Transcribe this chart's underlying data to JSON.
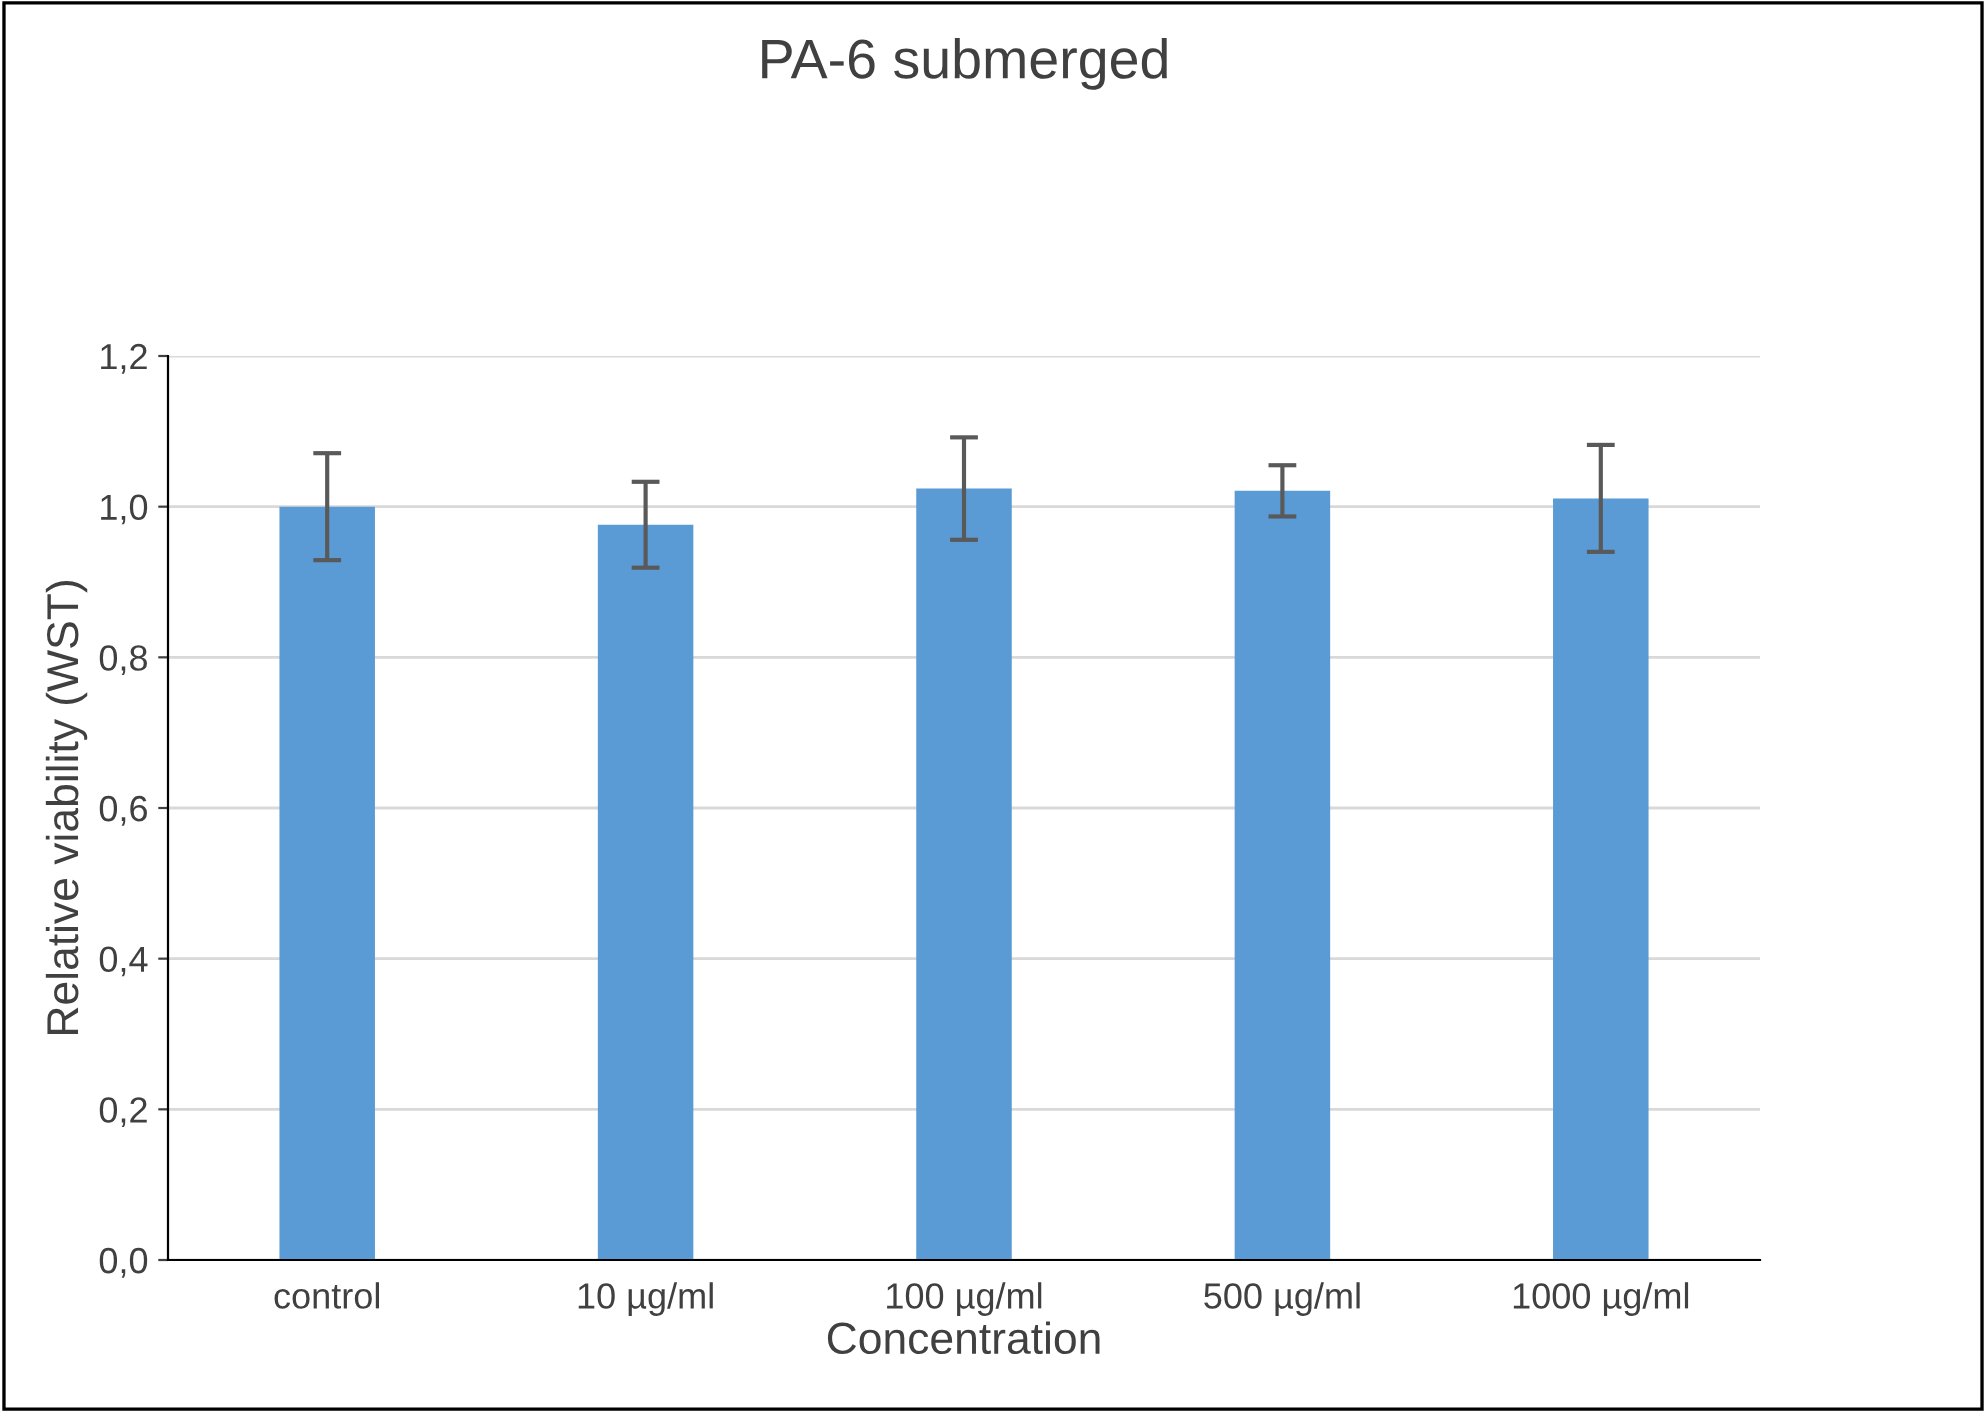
{
  "chart_data": {
    "type": "bar",
    "title": "PA-6 submerged",
    "xlabel": "Concentration",
    "ylabel": "Relative viability (WST)",
    "categories": [
      "control",
      "10 µg/ml",
      "100 µg/ml",
      "500 µg/ml",
      "1000 µg/ml"
    ],
    "values": [
      1.0,
      0.976,
      1.024,
      1.021,
      1.011
    ],
    "errors": [
      0.071,
      0.057,
      0.068,
      0.034,
      0.071
    ],
    "color": "#5b9bd5",
    "ylim": [
      0,
      1.2
    ],
    "yticks": [
      {
        "value": 0,
        "label": "0,0"
      },
      {
        "value": 0.2,
        "label": "0,2"
      },
      {
        "value": 0.4,
        "label": "0,4"
      },
      {
        "value": 0.6,
        "label": "0,6"
      },
      {
        "value": 0.8,
        "label": "0,8"
      },
      {
        "value": 1.0,
        "label": "1,0"
      },
      {
        "value": 1.2,
        "label": "1,2"
      }
    ],
    "grid": "y",
    "legend": false
  }
}
